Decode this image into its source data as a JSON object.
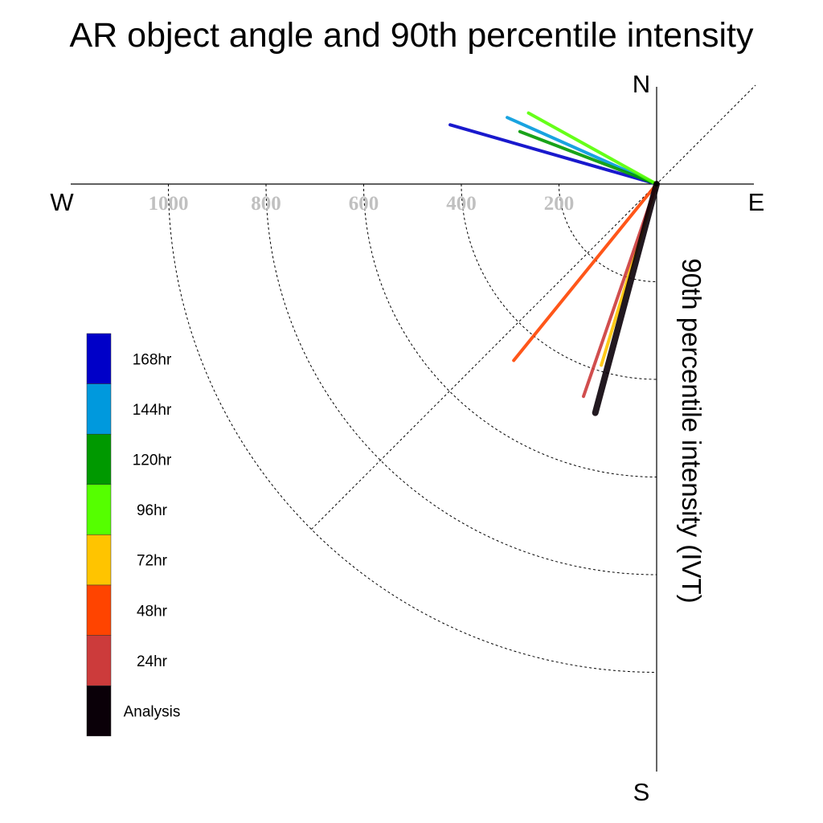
{
  "chart_data": {
    "type": "polar-vector",
    "title": "AR object angle and 90th percentile intensity",
    "radial_label": "90th percentile intensity (IVT)",
    "directions": {
      "north": "N",
      "south": "S",
      "east": "E",
      "west": "W"
    },
    "radial_ticks": [
      200,
      400,
      600,
      800,
      1000
    ],
    "radial_max": 1000,
    "grid": true,
    "legend_position": "left",
    "series": [
      {
        "name": "168hr",
        "color": "#0000c8",
        "angle_deg": 164,
        "intensity": 440,
        "stroke": 4
      },
      {
        "name": "144hr",
        "color": "#0099dd",
        "angle_deg": 156,
        "intensity": 335,
        "stroke": 4
      },
      {
        "name": "120hr",
        "color": "#009900",
        "angle_deg": 159,
        "intensity": 300,
        "stroke": 4
      },
      {
        "name": "96hr",
        "color": "#55ff00",
        "angle_deg": 151,
        "intensity": 300,
        "stroke": 4
      },
      {
        "name": "72hr",
        "color": "#ffc400",
        "angle_deg": 253,
        "intensity": 388,
        "stroke": 4
      },
      {
        "name": "48hr",
        "color": "#ff4400",
        "angle_deg": 231,
        "intensity": 465,
        "stroke": 4
      },
      {
        "name": "24hr",
        "color": "#cc3b3b",
        "angle_deg": 251,
        "intensity": 460,
        "stroke": 4
      },
      {
        "name": "Analysis",
        "color": "#0a0008",
        "angle_deg": 255,
        "intensity": 485,
        "stroke": 8
      }
    ],
    "legend_order": [
      "168hr",
      "144hr",
      "120hr",
      "96hr",
      "72hr",
      "48hr",
      "24hr",
      "Analysis"
    ]
  }
}
